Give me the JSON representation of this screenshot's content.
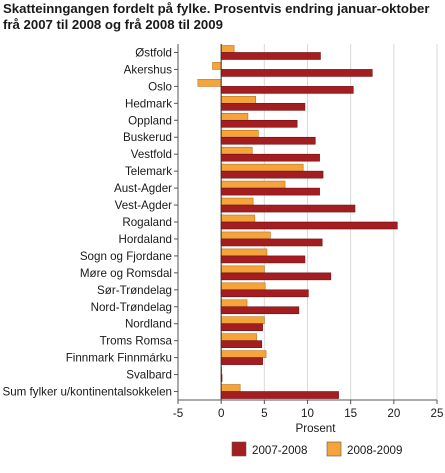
{
  "chart_data": {
    "type": "bar",
    "orientation": "horizontal",
    "title": "Skatteinngangen fordelt på fylke. Prosentvis endring januar-oktober frå 2007 til 2008 og frå 2008 til 2009",
    "xlabel": "Prosent",
    "ylabel": "",
    "xlim": [
      -5,
      25
    ],
    "xticks": [
      -5,
      0,
      5,
      10,
      15,
      20,
      25
    ],
    "grid": true,
    "legend_position": "bottom",
    "categories": [
      "Østfold",
      "Akershus",
      "Oslo",
      "Hedmark",
      "Oppland",
      "Buskerud",
      "Vestfold",
      "Telemark",
      "Aust-Agder",
      "Vest-Agder",
      "Rogaland",
      "Hordaland",
      "Sogn og Fjordane",
      "Møre og Romsdal",
      "Sør-Trøndelag",
      "Nord-Trøndelag",
      "Nordland",
      "Troms Romsa",
      "Finnmark Finnmárku",
      "Svalbard",
      "Sum fylker u/kontinentalsokkelen"
    ],
    "series": [
      {
        "name": "2007-2008",
        "color": "#a31d21",
        "values": [
          11.5,
          17.5,
          15.3,
          9.7,
          8.8,
          10.9,
          11.4,
          11.8,
          11.4,
          15.5,
          20.4,
          11.7,
          9.7,
          12.7,
          10.1,
          9.0,
          4.8,
          4.7,
          4.8,
          0.1,
          13.6
        ]
      },
      {
        "name": "2008-2009",
        "color": "#f5a33b",
        "values": [
          1.5,
          -1.0,
          -2.7,
          4.0,
          3.1,
          4.3,
          3.6,
          9.5,
          7.4,
          3.7,
          3.9,
          5.7,
          5.3,
          5.0,
          5.1,
          3.0,
          5.0,
          4.1,
          5.2,
          0.0,
          2.2
        ]
      }
    ]
  }
}
